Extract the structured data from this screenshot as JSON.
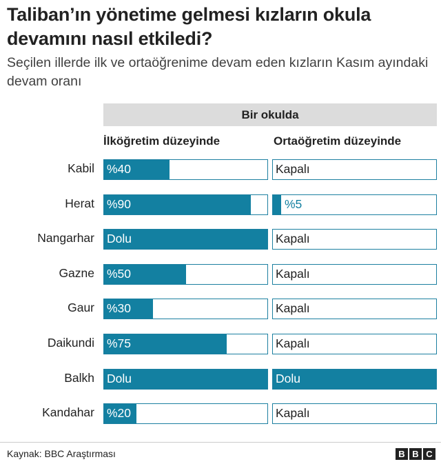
{
  "title": "Taliban’ın yönetime gelmesi kızların okula devamını nasıl etkiledi?",
  "subtitle": "Seçilen illerde ilk ve ortaöğrenime devam eden kızların Kasım ayındaki devam oranı",
  "source": "Kaynak: BBC Araştırması",
  "logo": [
    "B",
    "B",
    "C"
  ],
  "colors": {
    "fill": "#1380a1",
    "border": "#1b7fa0",
    "header_bg": "#dcdcdc"
  },
  "chart_data": {
    "type": "bar",
    "title": "Taliban’ın yönetime gelmesi kızların okula devamını nasıl etkiledi?",
    "group_header": "Bir okulda",
    "xlabel": "",
    "ylabel": "",
    "ylim": [
      0,
      100
    ],
    "categories": [
      "Kabil",
      "Herat",
      "Nangarhar",
      "Gazne",
      "Gaur",
      "Daikundi",
      "Balkh",
      "Kandahar"
    ],
    "series": [
      {
        "name": "İlköğretim düzeyinde",
        "values": [
          40,
          90,
          100,
          50,
          30,
          75,
          100,
          20
        ],
        "labels": [
          "%40",
          "%90",
          "Dolu",
          "%50",
          "%30",
          "%75",
          "Dolu",
          "%20"
        ]
      },
      {
        "name": "Ortaöğretim düzeyinde",
        "values": [
          0,
          5,
          0,
          0,
          0,
          0,
          100,
          0
        ],
        "labels": [
          "Kapalı",
          "%5",
          "Kapalı",
          "Kapalı",
          "Kapalı",
          "Kapalı",
          "Dolu",
          "Kapalı"
        ]
      }
    ]
  }
}
